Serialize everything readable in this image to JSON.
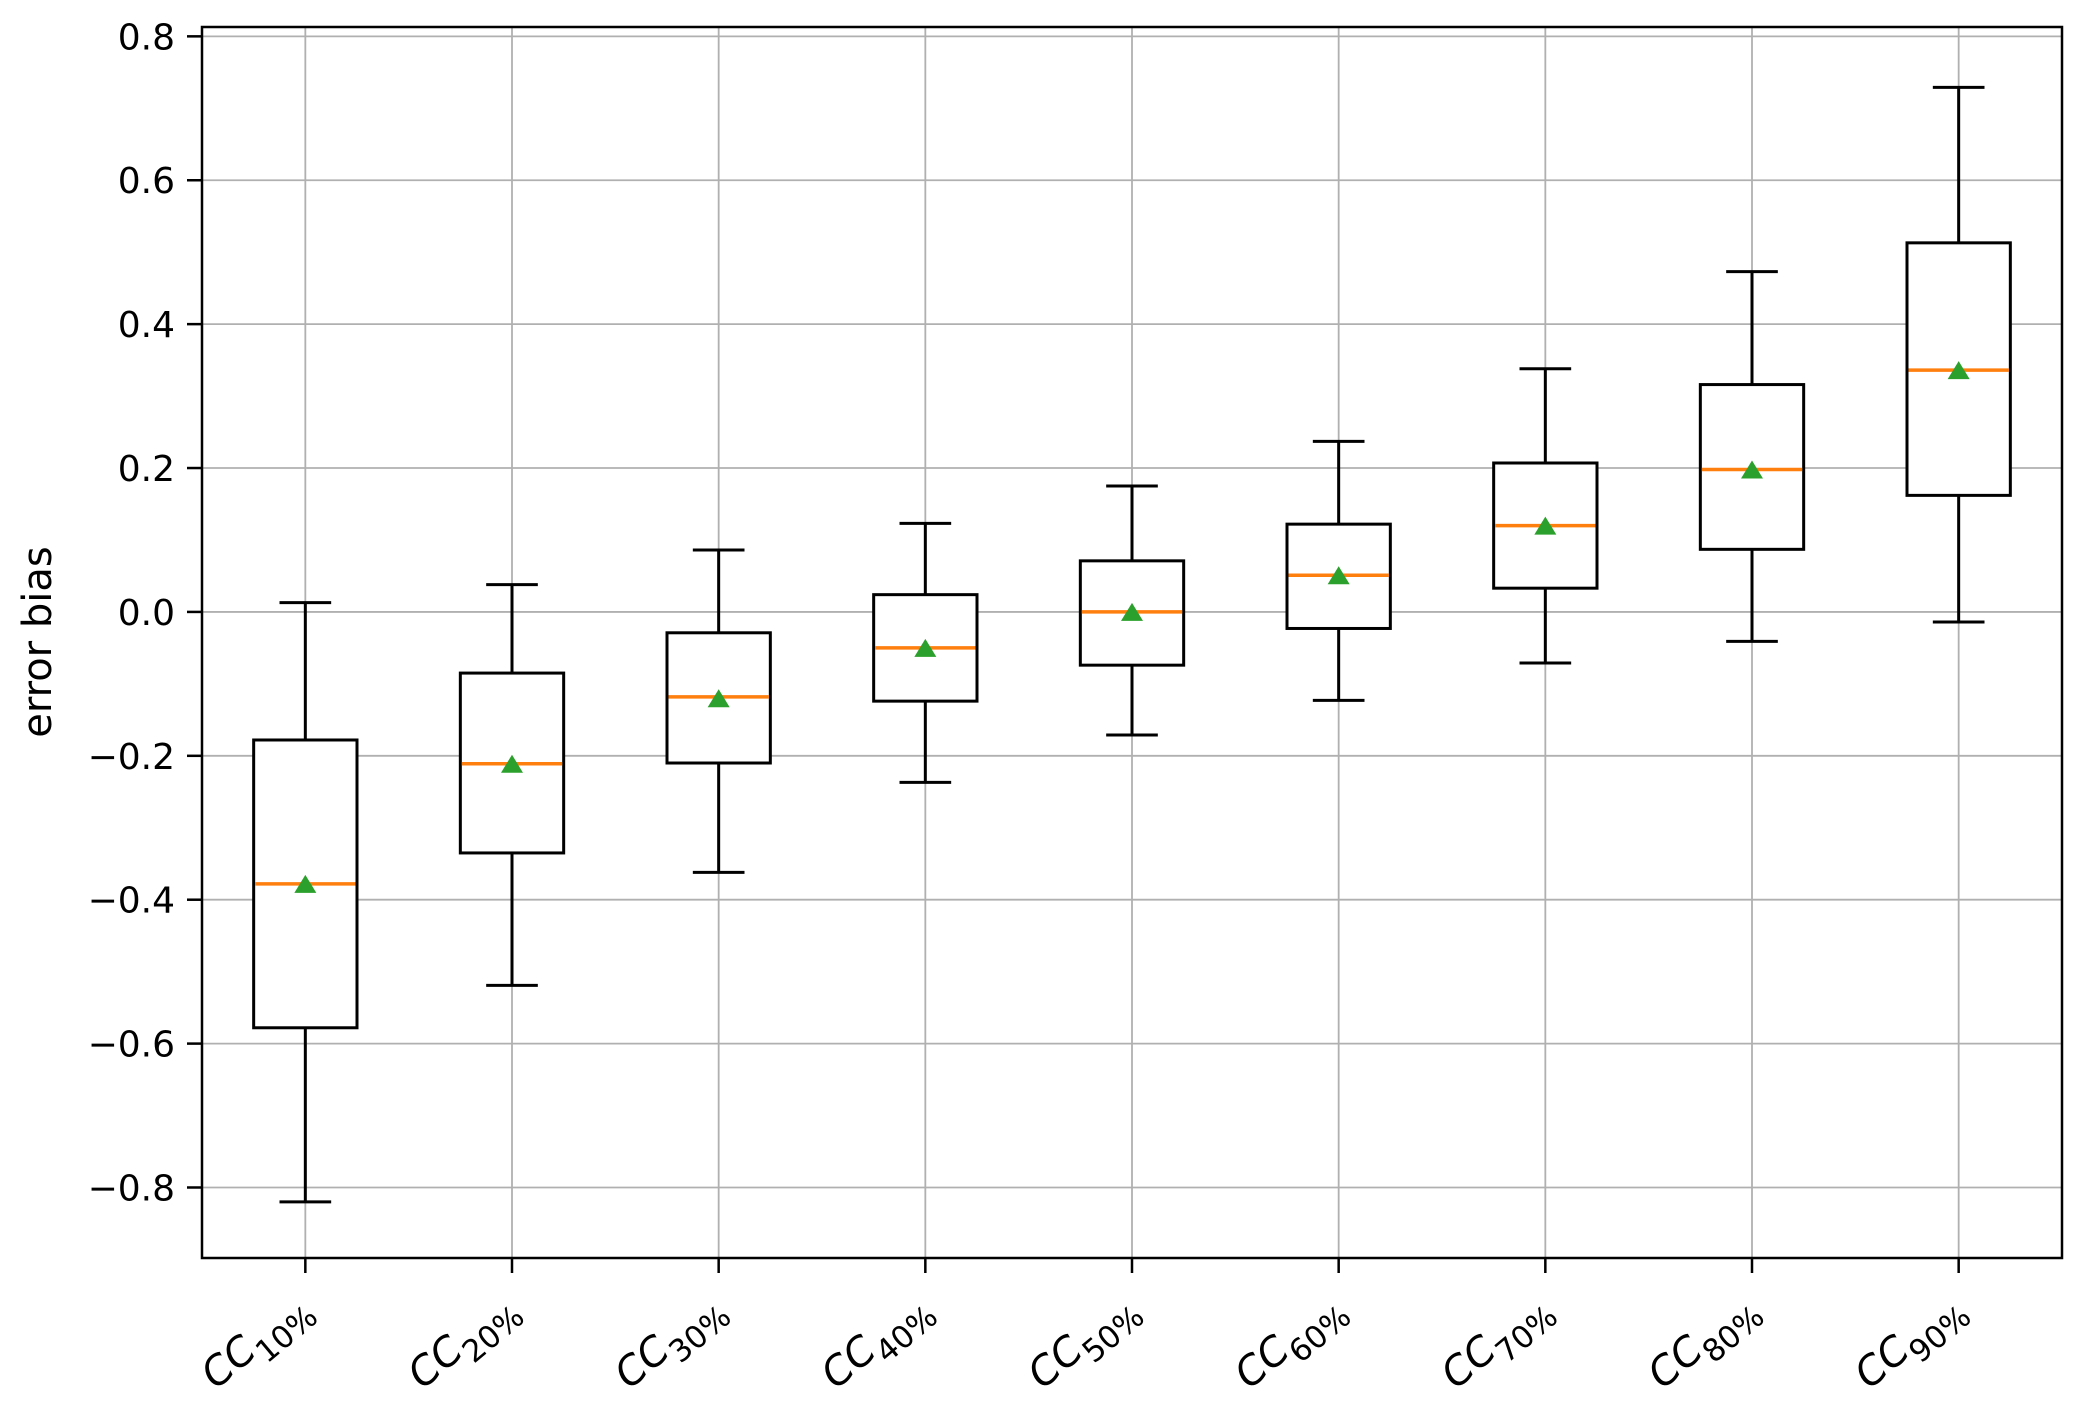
{
  "chart_data": {
    "type": "box",
    "title": "",
    "xlabel": "",
    "ylabel": "error bias",
    "grid": true,
    "legend": null,
    "ylim": [
      -0.898,
      0.813
    ],
    "yticks": [
      -0.8,
      -0.6,
      -0.4,
      -0.2,
      0.0,
      0.2,
      0.4,
      0.6,
      0.8
    ],
    "categories": [
      {
        "main": "CC",
        "sub": "10%"
      },
      {
        "main": "CC",
        "sub": "20%"
      },
      {
        "main": "CC",
        "sub": "30%"
      },
      {
        "main": "CC",
        "sub": "40%"
      },
      {
        "main": "CC",
        "sub": "50%"
      },
      {
        "main": "CC",
        "sub": "60%"
      },
      {
        "main": "CC",
        "sub": "70%"
      },
      {
        "main": "CC",
        "sub": "80%"
      },
      {
        "main": "CC",
        "sub": "90%"
      }
    ],
    "boxes": [
      {
        "label": "CC10%",
        "whislo": -0.82,
        "q1": -0.578,
        "med": -0.378,
        "q3": -0.178,
        "whishi": 0.013,
        "mean": -0.378
      },
      {
        "label": "CC20%",
        "whislo": -0.519,
        "q1": -0.335,
        "med": -0.211,
        "q3": -0.085,
        "whishi": 0.038,
        "mean": -0.211
      },
      {
        "label": "CC30%",
        "whislo": -0.362,
        "q1": -0.21,
        "med": -0.118,
        "q3": -0.029,
        "whishi": 0.086,
        "mean": -0.12
      },
      {
        "label": "CC40%",
        "whislo": -0.237,
        "q1": -0.124,
        "med": -0.05,
        "q3": 0.024,
        "whishi": 0.123,
        "mean": -0.05
      },
      {
        "label": "CC50%",
        "whislo": -0.171,
        "q1": -0.074,
        "med": 0.0,
        "q3": 0.071,
        "whishi": 0.175,
        "mean": 0.0
      },
      {
        "label": "CC60%",
        "whislo": -0.123,
        "q1": -0.023,
        "med": 0.051,
        "q3": 0.122,
        "whishi": 0.237,
        "mean": 0.051
      },
      {
        "label": "CC70%",
        "whislo": -0.071,
        "q1": 0.033,
        "med": 0.12,
        "q3": 0.207,
        "whishi": 0.338,
        "mean": 0.12
      },
      {
        "label": "CC80%",
        "whislo": -0.041,
        "q1": 0.087,
        "med": 0.198,
        "q3": 0.316,
        "whishi": 0.473,
        "mean": 0.198
      },
      {
        "label": "CC90%",
        "whislo": -0.014,
        "q1": 0.162,
        "med": 0.336,
        "q3": 0.513,
        "whishi": 0.729,
        "mean": 0.336
      }
    ],
    "colors": {
      "box": "#000000",
      "median": "#ff7f0e",
      "mean": "#2ca02c",
      "grid": "#b0b0b0",
      "background": "#ffffff"
    }
  }
}
